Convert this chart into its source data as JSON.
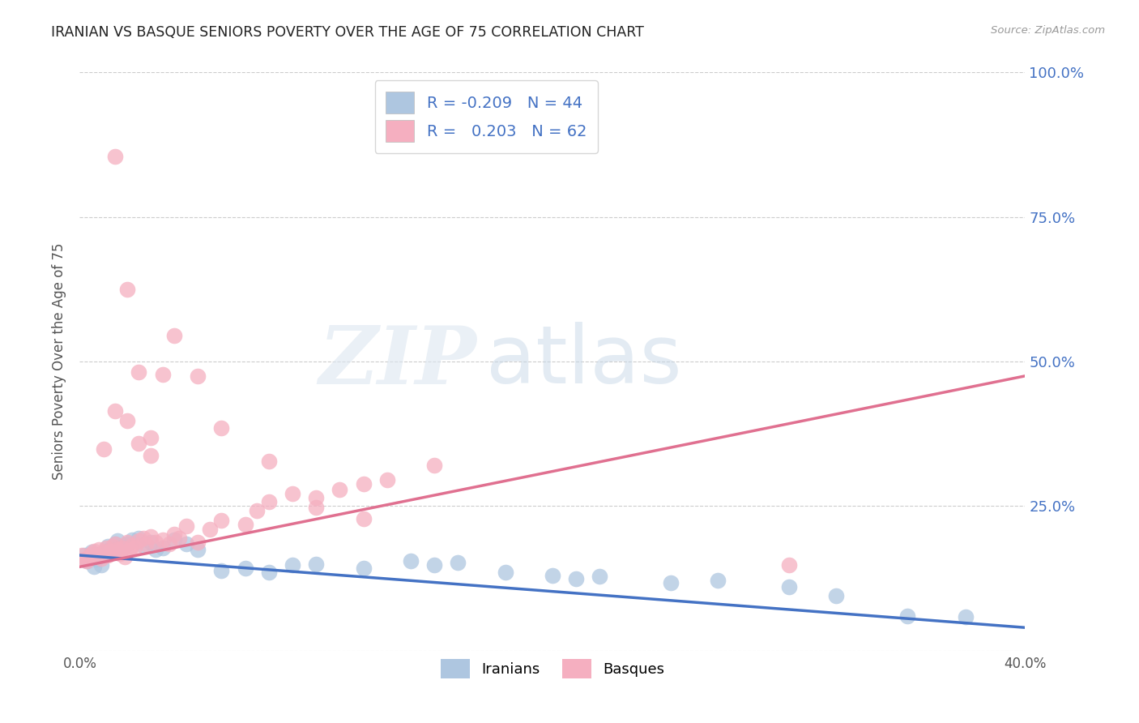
{
  "title": "IRANIAN VS BASQUE SENIORS POVERTY OVER THE AGE OF 75 CORRELATION CHART",
  "source_text": "Source: ZipAtlas.com",
  "ylabel": "Seniors Poverty Over the Age of 75",
  "xlabel": "",
  "xlim": [
    0.0,
    0.4
  ],
  "ylim": [
    0.0,
    1.0
  ],
  "xticks": [
    0.0,
    0.05,
    0.1,
    0.15,
    0.2,
    0.25,
    0.3,
    0.35,
    0.4
  ],
  "yticks": [
    0.0,
    0.25,
    0.5,
    0.75,
    1.0
  ],
  "ytick_labels_right": [
    "",
    "25.0%",
    "50.0%",
    "75.0%",
    "100.0%"
  ],
  "color_iranian": "#aec6e0",
  "color_basque": "#f5afc0",
  "line_color_iranian": "#4472c4",
  "line_color_basque": "#e07090",
  "scatter_color_iranian": "#aec6e0",
  "scatter_color_basque": "#f5afc0",
  "R_iranian": -0.209,
  "N_iranian": 44,
  "R_basque": 0.203,
  "N_basque": 62,
  "legend_label_iranian": "Iranians",
  "legend_label_basque": "Basques",
  "watermark_zip": "ZIP",
  "watermark_atlas": "atlas",
  "grid_color": "#cccccc",
  "background_color": "#ffffff",
  "title_color": "#222222",
  "axis_label_color": "#555555",
  "right_axis_color": "#4472c4",
  "ir_line_x0": 0.0,
  "ir_line_y0": 0.165,
  "ir_line_x1": 0.4,
  "ir_line_y1": 0.04,
  "bq_line_x0": 0.0,
  "bq_line_y0": 0.145,
  "bq_line_x1": 0.4,
  "bq_line_y1": 0.475,
  "iranian_x": [
    0.002,
    0.003,
    0.004,
    0.005,
    0.006,
    0.007,
    0.008,
    0.009,
    0.01,
    0.011,
    0.012,
    0.013,
    0.015,
    0.016,
    0.018,
    0.02,
    0.022,
    0.025,
    0.027,
    0.03,
    0.032,
    0.035,
    0.04,
    0.045,
    0.05,
    0.06,
    0.07,
    0.08,
    0.09,
    0.1,
    0.12,
    0.14,
    0.15,
    0.16,
    0.18,
    0.2,
    0.21,
    0.22,
    0.25,
    0.27,
    0.3,
    0.32,
    0.35,
    0.375
  ],
  "iranian_y": [
    0.165,
    0.155,
    0.16,
    0.17,
    0.145,
    0.158,
    0.162,
    0.148,
    0.168,
    0.172,
    0.18,
    0.175,
    0.185,
    0.19,
    0.178,
    0.185,
    0.192,
    0.195,
    0.182,
    0.188,
    0.175,
    0.178,
    0.192,
    0.185,
    0.175,
    0.138,
    0.142,
    0.135,
    0.148,
    0.15,
    0.142,
    0.155,
    0.148,
    0.152,
    0.135,
    0.13,
    0.125,
    0.128,
    0.118,
    0.122,
    0.11,
    0.095,
    0.06,
    0.058
  ],
  "basque_x": [
    0.001,
    0.002,
    0.003,
    0.004,
    0.005,
    0.006,
    0.007,
    0.008,
    0.009,
    0.01,
    0.011,
    0.012,
    0.013,
    0.014,
    0.015,
    0.016,
    0.017,
    0.018,
    0.019,
    0.02,
    0.021,
    0.022,
    0.023,
    0.025,
    0.027,
    0.028,
    0.03,
    0.032,
    0.035,
    0.038,
    0.04,
    0.042,
    0.045,
    0.05,
    0.055,
    0.06,
    0.07,
    0.075,
    0.08,
    0.09,
    0.1,
    0.11,
    0.12,
    0.13,
    0.15,
    0.3,
    0.01,
    0.015,
    0.02,
    0.025,
    0.03,
    0.035,
    0.04,
    0.05,
    0.06,
    0.08,
    0.1,
    0.12,
    0.015,
    0.02,
    0.025,
    0.03
  ],
  "basque_y": [
    0.165,
    0.158,
    0.155,
    0.162,
    0.168,
    0.172,
    0.165,
    0.175,
    0.16,
    0.17,
    0.178,
    0.165,
    0.172,
    0.18,
    0.185,
    0.175,
    0.168,
    0.178,
    0.162,
    0.188,
    0.175,
    0.182,
    0.178,
    0.19,
    0.195,
    0.185,
    0.198,
    0.188,
    0.192,
    0.185,
    0.202,
    0.195,
    0.215,
    0.188,
    0.21,
    0.225,
    0.218,
    0.242,
    0.258,
    0.272,
    0.265,
    0.278,
    0.288,
    0.295,
    0.32,
    0.148,
    0.348,
    0.415,
    0.398,
    0.358,
    0.368,
    0.478,
    0.545,
    0.475,
    0.385,
    0.328,
    0.248,
    0.228,
    0.855,
    0.625,
    0.482,
    0.338
  ]
}
